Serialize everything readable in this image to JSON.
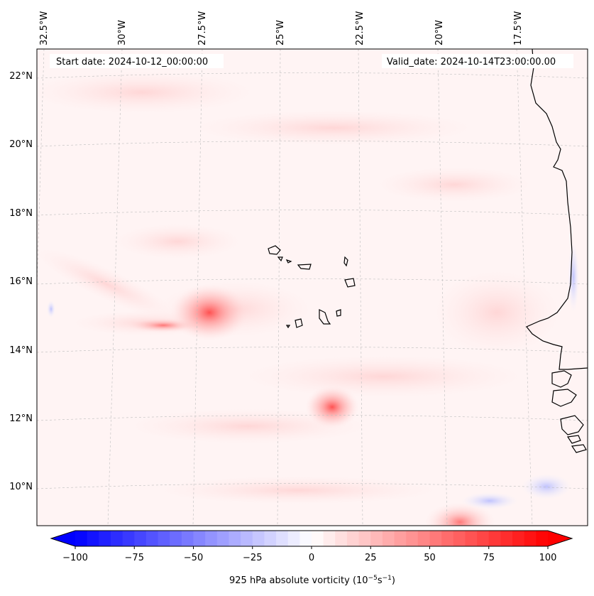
{
  "header": {
    "start_date": "Start date: 2024-10-12_00:00:00",
    "valid_date": "Valid_date: 2024-10-14T23:00:00.00"
  },
  "map": {
    "top_lon_labels": [
      "32.5°W",
      "30°W",
      "27.5°W",
      "25°W",
      "22.5°W",
      "20°W",
      "17.5°W"
    ],
    "left_lat_labels": [
      "22°N",
      "20°N",
      "18°N",
      "16°N",
      "14°N",
      "12°N",
      "10°N"
    ],
    "gridlines": true,
    "field": "925 hPa absolute vorticity",
    "vorticity_maxima": [
      {
        "lat": 15.0,
        "lon": -27.3,
        "value": 55
      },
      {
        "lat": 12.3,
        "lon": -23.0,
        "value": 45
      },
      {
        "lat": 9.0,
        "lon": -20.2,
        "value": 35
      }
    ],
    "land_outline": "West African coast (Senegal / Gambia / Guinea-Bissau) and Cape Verde islands"
  },
  "colorbar": {
    "label_text": "925 hPa absolute vorticity (10",
    "label_sup1": "−5",
    "label_mid": "s",
    "label_sup2": "−1",
    "label_end": ")",
    "ticks": [
      "−100",
      "−75",
      "−50",
      "−25",
      "0",
      "25",
      "50",
      "75",
      "100"
    ],
    "min": -100,
    "max": 100,
    "step": 5,
    "colors": {
      "low": "#0000ff",
      "mid": "#ffffff",
      "high": "#ff0000"
    }
  }
}
